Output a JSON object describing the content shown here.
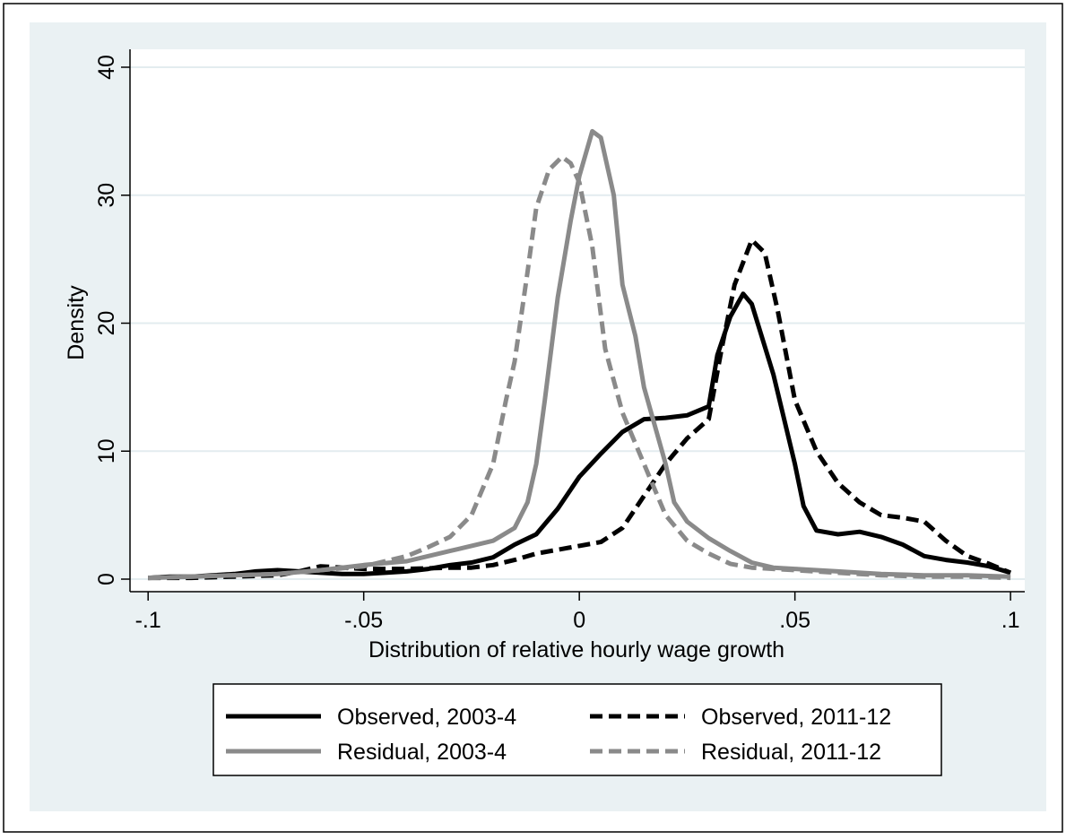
{
  "chart_data": {
    "type": "line",
    "xlabel": "Distribution of relative hourly wage growth",
    "ylabel": "Density",
    "xlim": [
      -0.1042,
      0.1033
    ],
    "ylim": [
      -0.98,
      41.4
    ],
    "xticks": [
      {
        "value": -0.1,
        "label": "-.1"
      },
      {
        "value": -0.05,
        "label": "-.05"
      },
      {
        "value": 0,
        "label": "0"
      },
      {
        "value": 0.05,
        "label": ".05"
      },
      {
        "value": 0.1,
        "label": ".1"
      }
    ],
    "yticks": [
      0,
      10,
      20,
      30,
      40
    ],
    "grid": true,
    "legend": "bottom",
    "series": [
      {
        "name": "Observed, 2003-4",
        "color": "#000000",
        "dash": false,
        "x": [
          -0.1,
          -0.095,
          -0.09,
          -0.085,
          -0.08,
          -0.075,
          -0.07,
          -0.065,
          -0.06,
          -0.055,
          -0.05,
          -0.045,
          -0.04,
          -0.035,
          -0.03,
          -0.025,
          -0.02,
          -0.015,
          -0.01,
          -0.005,
          0,
          0.005,
          0.01,
          0.015,
          0.02,
          0.025,
          0.03,
          0.032,
          0.035,
          0.038,
          0.04,
          0.045,
          0.05,
          0.052,
          0.055,
          0.06,
          0.065,
          0.07,
          0.075,
          0.08,
          0.085,
          0.09,
          0.095,
          0.1
        ],
        "values": [
          0.1,
          0.2,
          0.2,
          0.3,
          0.4,
          0.6,
          0.7,
          0.6,
          0.5,
          0.4,
          0.4,
          0.5,
          0.6,
          0.8,
          1.1,
          1.3,
          1.7,
          2.7,
          3.5,
          5.5,
          8,
          9.8,
          11.5,
          12.5,
          12.6,
          12.8,
          13.5,
          17.5,
          20.5,
          22.3,
          21.5,
          16,
          9,
          5.7,
          3.8,
          3.5,
          3.7,
          3.3,
          2.7,
          1.8,
          1.5,
          1.3,
          1.0,
          0.5
        ]
      },
      {
        "name": "Observed, 2011-12",
        "color": "#000000",
        "dash": true,
        "x": [
          -0.1,
          -0.09,
          -0.08,
          -0.07,
          -0.065,
          -0.06,
          -0.055,
          -0.05,
          -0.04,
          -0.03,
          -0.025,
          -0.02,
          -0.015,
          -0.01,
          -0.005,
          0,
          0.005,
          0.01,
          0.015,
          0.02,
          0.025,
          0.03,
          0.033,
          0.036,
          0.04,
          0.043,
          0.046,
          0.05,
          0.055,
          0.06,
          0.065,
          0.07,
          0.075,
          0.08,
          0.085,
          0.09,
          0.095,
          0.1
        ],
        "values": [
          0.1,
          0.1,
          0.2,
          0.3,
          0.6,
          1.0,
          0.9,
          0.8,
          0.8,
          0.9,
          0.9,
          1.1,
          1.5,
          2.0,
          2.3,
          2.6,
          2.9,
          4,
          6.5,
          9,
          11,
          12.5,
          18,
          23,
          26.5,
          25.5,
          21,
          14,
          10,
          7.5,
          6,
          5,
          4.8,
          4.5,
          3,
          1.8,
          1.2,
          0.5
        ]
      },
      {
        "name": "Residual, 2003-4",
        "color": "#8a8a8a",
        "dash": false,
        "x": [
          -0.1,
          -0.09,
          -0.08,
          -0.07,
          -0.06,
          -0.05,
          -0.04,
          -0.035,
          -0.03,
          -0.025,
          -0.02,
          -0.015,
          -0.012,
          -0.01,
          -0.008,
          -0.005,
          -0.002,
          0,
          0.003,
          0.005,
          0.008,
          0.01,
          0.013,
          0.015,
          0.02,
          0.022,
          0.025,
          0.03,
          0.035,
          0.04,
          0.045,
          0.05,
          0.06,
          0.07,
          0.08,
          0.09,
          0.1
        ],
        "values": [
          0.1,
          0.2,
          0.3,
          0.4,
          0.7,
          1.1,
          1.4,
          1.8,
          2.2,
          2.6,
          3,
          4,
          6,
          9,
          14,
          22,
          28,
          31.5,
          35,
          34.5,
          30,
          23,
          19,
          15,
          9,
          6,
          4.5,
          3.2,
          2.2,
          1.3,
          0.9,
          0.8,
          0.6,
          0.4,
          0.3,
          0.3,
          0.2
        ]
      },
      {
        "name": "Residual, 2011-12",
        "color": "#8a8a8a",
        "dash": true,
        "x": [
          -0.1,
          -0.09,
          -0.08,
          -0.07,
          -0.06,
          -0.05,
          -0.04,
          -0.035,
          -0.03,
          -0.025,
          -0.02,
          -0.017,
          -0.015,
          -0.012,
          -0.01,
          -0.007,
          -0.004,
          -0.002,
          0,
          0.003,
          0.006,
          0.01,
          0.015,
          0.02,
          0.025,
          0.03,
          0.035,
          0.04,
          0.05,
          0.06,
          0.07,
          0.08,
          0.09,
          0.1
        ],
        "values": [
          0.1,
          0.2,
          0.3,
          0.4,
          0.7,
          1.0,
          1.8,
          2.5,
          3.3,
          5,
          9,
          14,
          17,
          24,
          29,
          32,
          33,
          32.5,
          31,
          26,
          18,
          13,
          9,
          5,
          3,
          2,
          1.2,
          0.9,
          0.7,
          0.5,
          0.3,
          0.2,
          0.2,
          0.1
        ]
      }
    ]
  }
}
